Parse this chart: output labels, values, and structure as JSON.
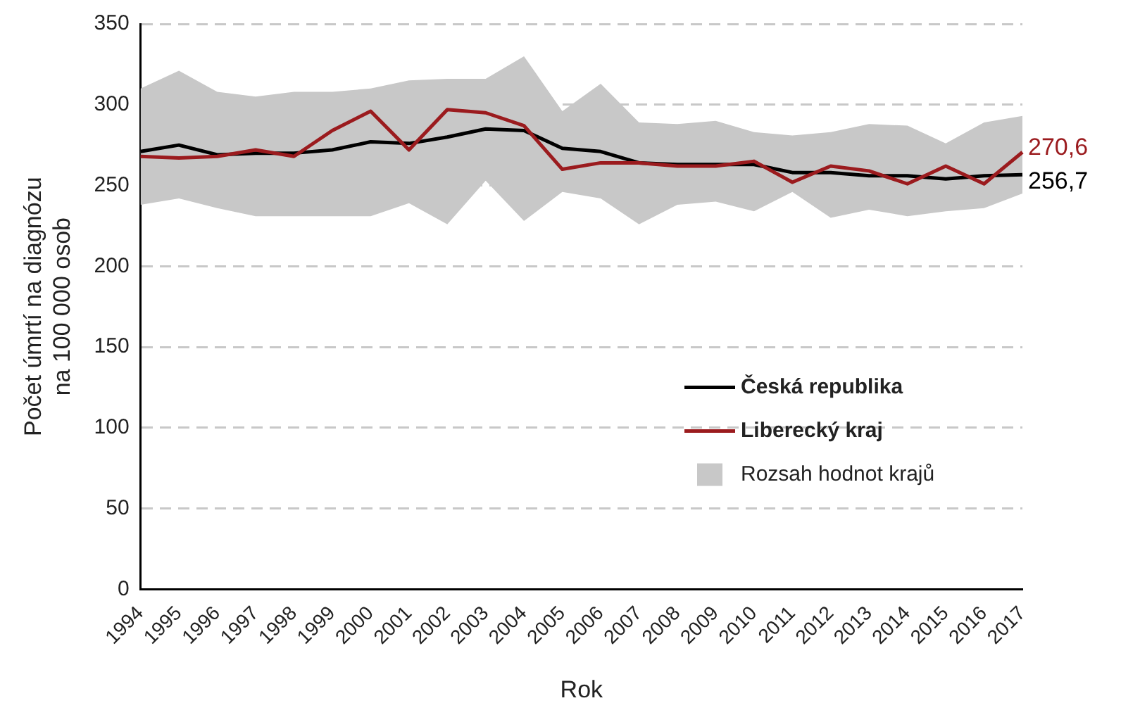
{
  "chart_data": {
    "type": "line",
    "xlabel": "Rok",
    "ylabel": "Počet úmrtí na diagnózu\nna 100 000 osob",
    "categories": [
      "1994",
      "1995",
      "1996",
      "1997",
      "1998",
      "1999",
      "2000",
      "2001",
      "2002",
      "2003",
      "2004",
      "2005",
      "2006",
      "2007",
      "2008",
      "2009",
      "2010",
      "2011",
      "2012",
      "2013",
      "2014",
      "2015",
      "2016",
      "2017"
    ],
    "series": [
      {
        "name": "Rozsah hodnot krajů",
        "color": "#c8c8c8",
        "values": [
          null,
          null,
          null,
          null,
          null,
          null,
          null,
          null,
          null,
          null,
          null,
          null,
          null,
          null,
          null,
          null,
          null,
          null,
          null,
          null,
          null,
          null,
          null,
          null
        ],
        "lower": [
          238,
          242,
          236,
          231,
          231,
          231,
          231,
          239,
          226,
          253,
          228,
          246,
          242,
          226,
          238,
          240,
          234,
          246,
          230,
          235,
          231,
          234,
          236,
          245
        ],
        "upper": [
          310,
          321,
          308,
          305,
          308,
          308,
          310,
          315,
          316,
          316,
          330,
          296,
          313,
          289,
          288,
          290,
          283,
          281,
          283,
          288,
          287,
          276,
          289,
          293
        ]
      },
      {
        "name": "Česká republika",
        "color": "#000000",
        "values": [
          271,
          275,
          269,
          270,
          270,
          272,
          277,
          276,
          280,
          285,
          284,
          273,
          271,
          264,
          263,
          263,
          263,
          258,
          258,
          256,
          256,
          254,
          256,
          256.7
        ]
      },
      {
        "name": "Liberecký kraj",
        "color": "#9b1b1e",
        "values": [
          268,
          267,
          268,
          272,
          268,
          284,
          296,
          272,
          297,
          295,
          287,
          260,
          264,
          264,
          262,
          262,
          265,
          252,
          262,
          259,
          251,
          262,
          251,
          270.6
        ]
      }
    ],
    "annotations": [
      {
        "text": "270,6",
        "x": "2017",
        "y": 270.6
      },
      {
        "text": "256,7",
        "x": "2017",
        "y": 256.7
      }
    ],
    "ylim": [
      0,
      350
    ],
    "yticks": [
      0,
      50,
      100,
      150,
      200,
      250,
      300,
      350
    ],
    "grid": "y",
    "legend": "right",
    "marker": "none",
    "line_style": "solid"
  }
}
